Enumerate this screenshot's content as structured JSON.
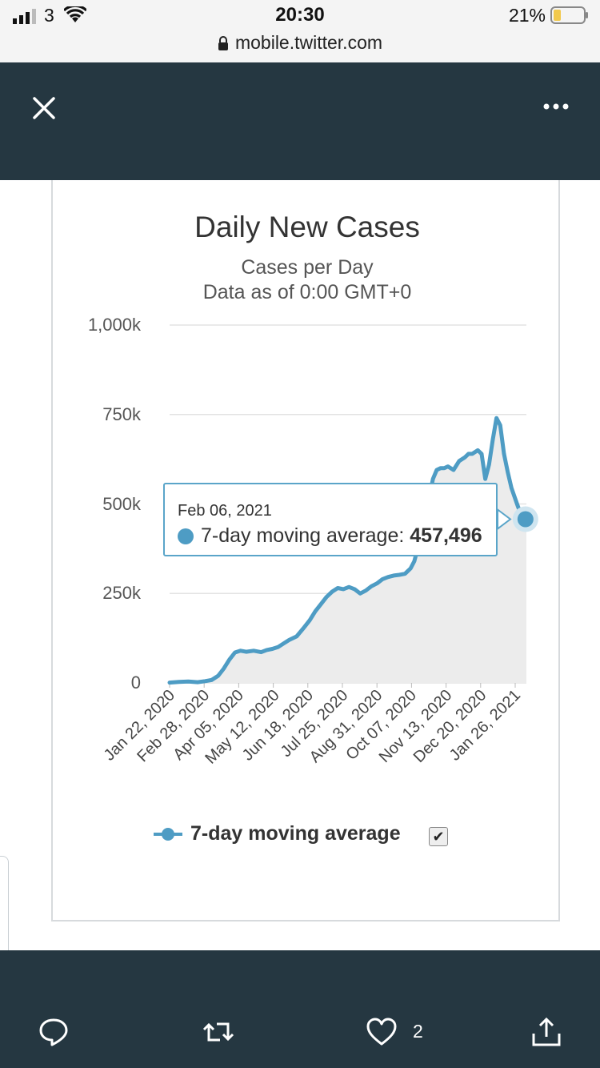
{
  "status_bar": {
    "carrier": "3",
    "time": "20:30",
    "battery": "21%",
    "url": "mobile.twitter.com"
  },
  "icons": {
    "close": "close-icon",
    "more": "more-icon",
    "reply": "reply-icon",
    "retweet": "retweet-icon",
    "like": "heart-icon",
    "share": "share-icon"
  },
  "tweet": {
    "like_count": "2"
  },
  "colors": {
    "header": "#253741",
    "series": "#4e9cc4",
    "tooltip_border": "#5aa5c9"
  },
  "chart_data": {
    "type": "area",
    "title": "Daily New Cases",
    "subtitle": "Cases per Day",
    "subtitle2": "Data as of 0:00 GMT+0",
    "y_tick_labels": [
      "0",
      "250k",
      "500k",
      "750k",
      "1,000k"
    ],
    "y_ticks": [
      0,
      250000,
      500000,
      750000,
      1000000
    ],
    "ylim": [
      0,
      1000000
    ],
    "x_tick_labels": [
      "Jan 22, 2020",
      "Feb 28, 2020",
      "Apr 05, 2020",
      "May 12, 2020",
      "Jun 18, 2020",
      "Jul 25, 2020",
      "Aug 31, 2020",
      "Oct 07, 2020",
      "Nov 13, 2020",
      "Dec 20, 2020",
      "Jan 26, 2021"
    ],
    "x_tick_days": [
      0,
      37,
      74,
      111,
      148,
      185,
      222,
      259,
      296,
      333,
      370
    ],
    "grid": true,
    "legend_position": "bottom",
    "series": [
      {
        "name": "7-day moving average",
        "x": [
          0,
          10,
          20,
          30,
          38,
          45,
          52,
          58,
          64,
          70,
          76,
          82,
          90,
          98,
          104,
          110,
          116,
          122,
          128,
          136,
          144,
          150,
          156,
          162,
          168,
          174,
          180,
          186,
          192,
          198,
          204,
          210,
          216,
          222,
          228,
          234,
          240,
          246,
          252,
          258,
          262,
          266,
          270,
          274,
          278,
          282,
          286,
          290,
          294,
          298,
          304,
          310,
          316,
          320,
          324,
          330,
          334,
          338,
          342,
          346,
          350,
          354,
          358,
          362,
          366,
          372,
          378,
          382
        ],
        "y": [
          1000,
          3000,
          4000,
          2000,
          5000,
          8000,
          20000,
          40000,
          65000,
          85000,
          90000,
          87000,
          90000,
          86000,
          92000,
          95000,
          100000,
          110000,
          120000,
          130000,
          155000,
          175000,
          200000,
          220000,
          240000,
          255000,
          265000,
          262000,
          268000,
          262000,
          250000,
          258000,
          270000,
          278000,
          290000,
          296000,
          300000,
          302000,
          305000,
          320000,
          340000,
          380000,
          420000,
          470000,
          520000,
          570000,
          595000,
          600000,
          600000,
          605000,
          595000,
          620000,
          630000,
          640000,
          640000,
          650000,
          640000,
          570000,
          610000,
          680000,
          740000,
          720000,
          640000,
          590000,
          545000,
          500000,
          457496,
          457496
        ]
      }
    ],
    "tooltip": {
      "date": "Feb 06, 2021",
      "series_label": "7-day moving average:",
      "value_text": "457,496",
      "value": 457496,
      "day": 381
    }
  }
}
